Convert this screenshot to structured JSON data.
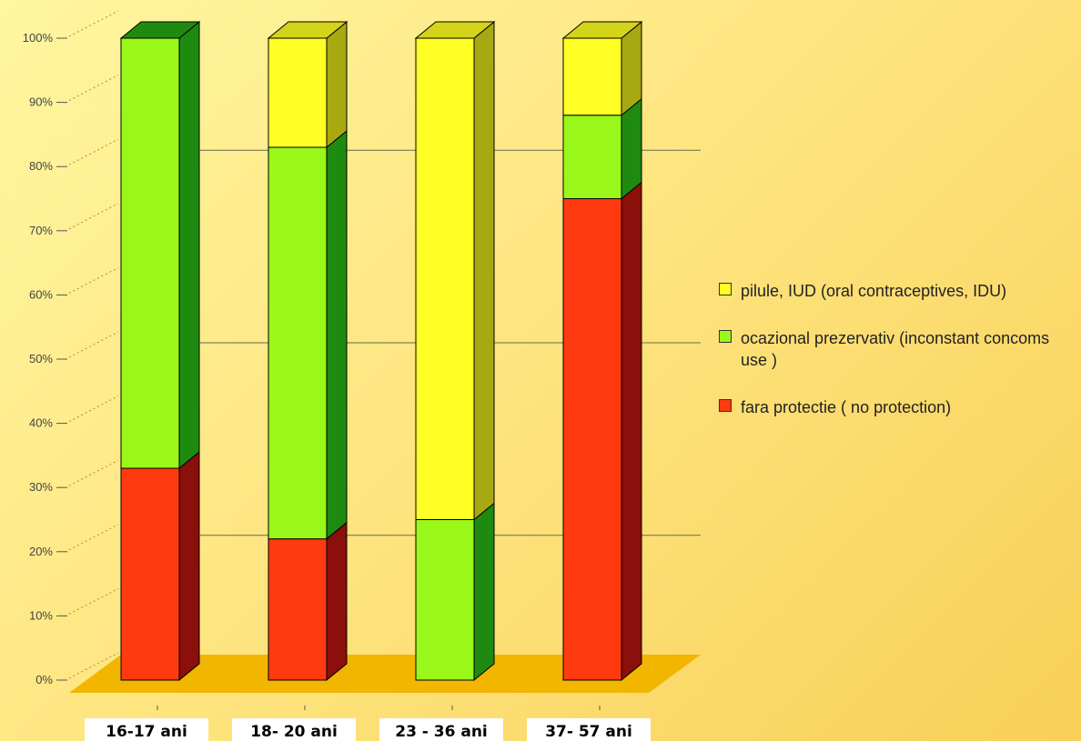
{
  "chart_data": {
    "type": "bar",
    "stacked": true,
    "three_d": true,
    "categories": [
      "16-17 ani",
      "18- 20 ani",
      "23 - 36 ani",
      "37- 57 ani"
    ],
    "series": [
      {
        "name": "fara protectie ( no protection)",
        "color": "#ff3a10",
        "side_color": "#8b0f0a",
        "values": [
          33,
          22,
          0,
          75
        ]
      },
      {
        "name": "ocazional prezervativ (inconstant concoms use )",
        "color": "#99f719",
        "side_color": "#1f8a10",
        "values": [
          67,
          61,
          25,
          13
        ]
      },
      {
        "name": "pilule, IUD (oral contraceptives, IDU)",
        "color": "#ffff26",
        "side_color": "#a8a812",
        "values": [
          0,
          17,
          75,
          12
        ]
      }
    ],
    "yticks": [
      "0%",
      "10%",
      "20%",
      "30%",
      "40%",
      "50%",
      "60%",
      "70%",
      "80%",
      "90%",
      "100%"
    ],
    "ylim": [
      0,
      100
    ],
    "legend_position": "right",
    "floor_color": "#f2b500"
  },
  "legend": {
    "items": [
      {
        "text": "pilule, IUD (oral contraceptives, IDU)",
        "color": "#ffff26"
      },
      {
        "text": "ocazional prezervativ (inconstant concoms use )",
        "color": "#99f719"
      },
      {
        "text": "fara protectie ( no protection)",
        "color": "#ff3a10"
      }
    ]
  }
}
